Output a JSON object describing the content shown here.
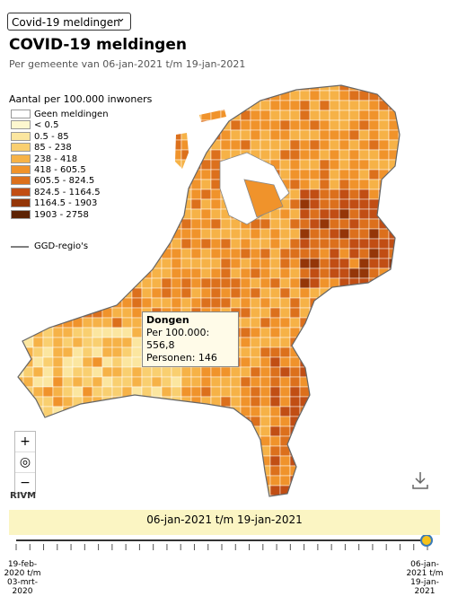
{
  "dropdown": "Covid-19 meldingen",
  "header": {
    "title": "COVID-19 meldingen",
    "subtitle": "Per gemeente van 06-jan-2021 t/m 19-jan-2021"
  },
  "legend": {
    "title": "Aantal per 100.000 inwoners",
    "items": [
      {
        "label": "Geen meldingen",
        "color": "#ffffff"
      },
      {
        "label": "< 0.5",
        "color": "#fdf7cf"
      },
      {
        "label": "0.5 - 85",
        "color": "#fbe6a0"
      },
      {
        "label": "85 - 238",
        "color": "#f9cf70"
      },
      {
        "label": "238 - 418",
        "color": "#f6b247"
      },
      {
        "label": "418 - 605.5",
        "color": "#f0932b"
      },
      {
        "label": "605.5 - 824.5",
        "color": "#dc701c"
      },
      {
        "label": "824.5 - 1164.5",
        "color": "#c14e14"
      },
      {
        "label": "1164.5 - 1903",
        "color": "#943608"
      },
      {
        "label": "1903 - 2758",
        "color": "#5c2204"
      }
    ],
    "region_label": "GGD-regio's"
  },
  "tooltip": {
    "name": "Dongen",
    "lines": [
      "Per 100.000: 556,8",
      "Personen: 146"
    ]
  },
  "controls": {
    "zoom_in": "+",
    "zoom_out": "−"
  },
  "source": "RIVM",
  "timeline": {
    "label": "06-jan-2021 t/m 19-jan-2021",
    "start": [
      "19-feb-",
      "2020 t/m",
      "03-mrt-",
      "2020"
    ],
    "end": [
      "06-jan-",
      "2021 t/m",
      "19-jan-",
      "2021"
    ]
  }
}
